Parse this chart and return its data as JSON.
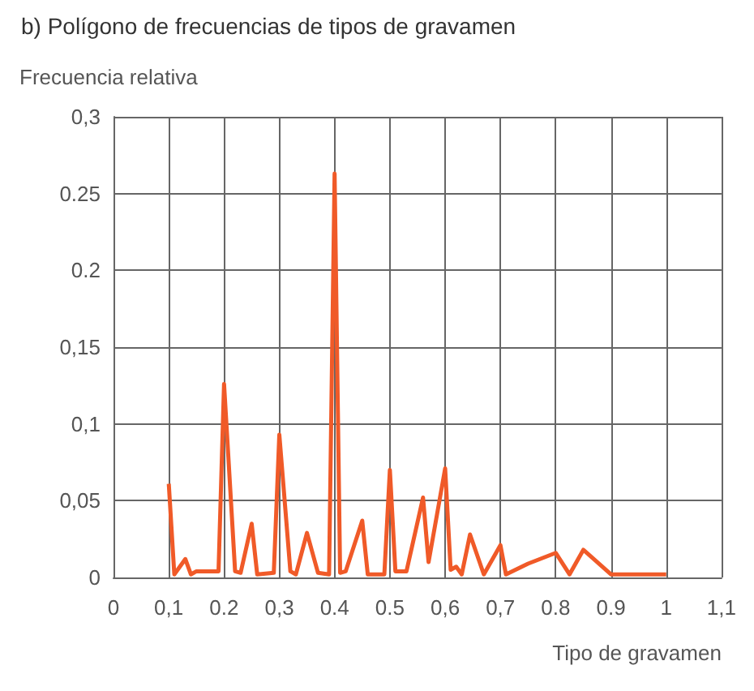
{
  "chart_data": {
    "type": "line",
    "title": "b) Polígono de frecuencias de tipos de gravamen",
    "ylabel": "Frecuencia relativa",
    "xlabel": "Tipo de gravamen",
    "x": [
      0.1,
      0.11,
      0.13,
      0.14,
      0.15,
      0.19,
      0.2,
      0.22,
      0.23,
      0.25,
      0.26,
      0.29,
      0.3,
      0.32,
      0.33,
      0.35,
      0.37,
      0.39,
      0.4,
      0.41,
      0.42,
      0.45,
      0.46,
      0.49,
      0.5,
      0.51,
      0.53,
      0.56,
      0.57,
      0.6,
      0.61,
      0.62,
      0.63,
      0.645,
      0.67,
      0.7,
      0.71,
      0.75,
      0.8,
      0.825,
      0.85,
      0.9,
      1.0
    ],
    "series": [
      {
        "color": "#f05a28",
        "values": [
          0.061,
          0.002,
          0.012,
          0.002,
          0.004,
          0.004,
          0.126,
          0.004,
          0.003,
          0.035,
          0.002,
          0.003,
          0.093,
          0.004,
          0.002,
          0.029,
          0.003,
          0.002,
          0.263,
          0.003,
          0.004,
          0.037,
          0.002,
          0.002,
          0.07,
          0.004,
          0.004,
          0.052,
          0.01,
          0.071,
          0.005,
          0.007,
          0.002,
          0.028,
          0.002,
          0.021,
          0.002,
          0.009,
          0.016,
          0.002,
          0.018,
          0.002,
          0.002
        ]
      }
    ],
    "xlim": [
      0,
      1.1
    ],
    "xticks": [
      0,
      {
        "value": 0.1,
        "label": "0,1"
      },
      0.2,
      {
        "value": 0.3,
        "label": "0,3"
      },
      0.4,
      0.5,
      {
        "value": 0.6,
        "label": "0,6"
      },
      {
        "value": 0.7,
        "label": "0,7"
      },
      0.8,
      0.9,
      1,
      {
        "value": 1.1,
        "label": "1,1"
      }
    ],
    "ylim": [
      0,
      0.3
    ],
    "yticks": [
      0,
      {
        "value": 0.05,
        "label": "0,05"
      },
      {
        "value": 0.1,
        "label": "0,1"
      },
      {
        "value": 0.15,
        "label": "0,15"
      },
      0.2,
      0.25,
      {
        "value": 0.3,
        "label": "0,3"
      }
    ],
    "grid": true,
    "line_style": "solid",
    "marker": "none"
  }
}
